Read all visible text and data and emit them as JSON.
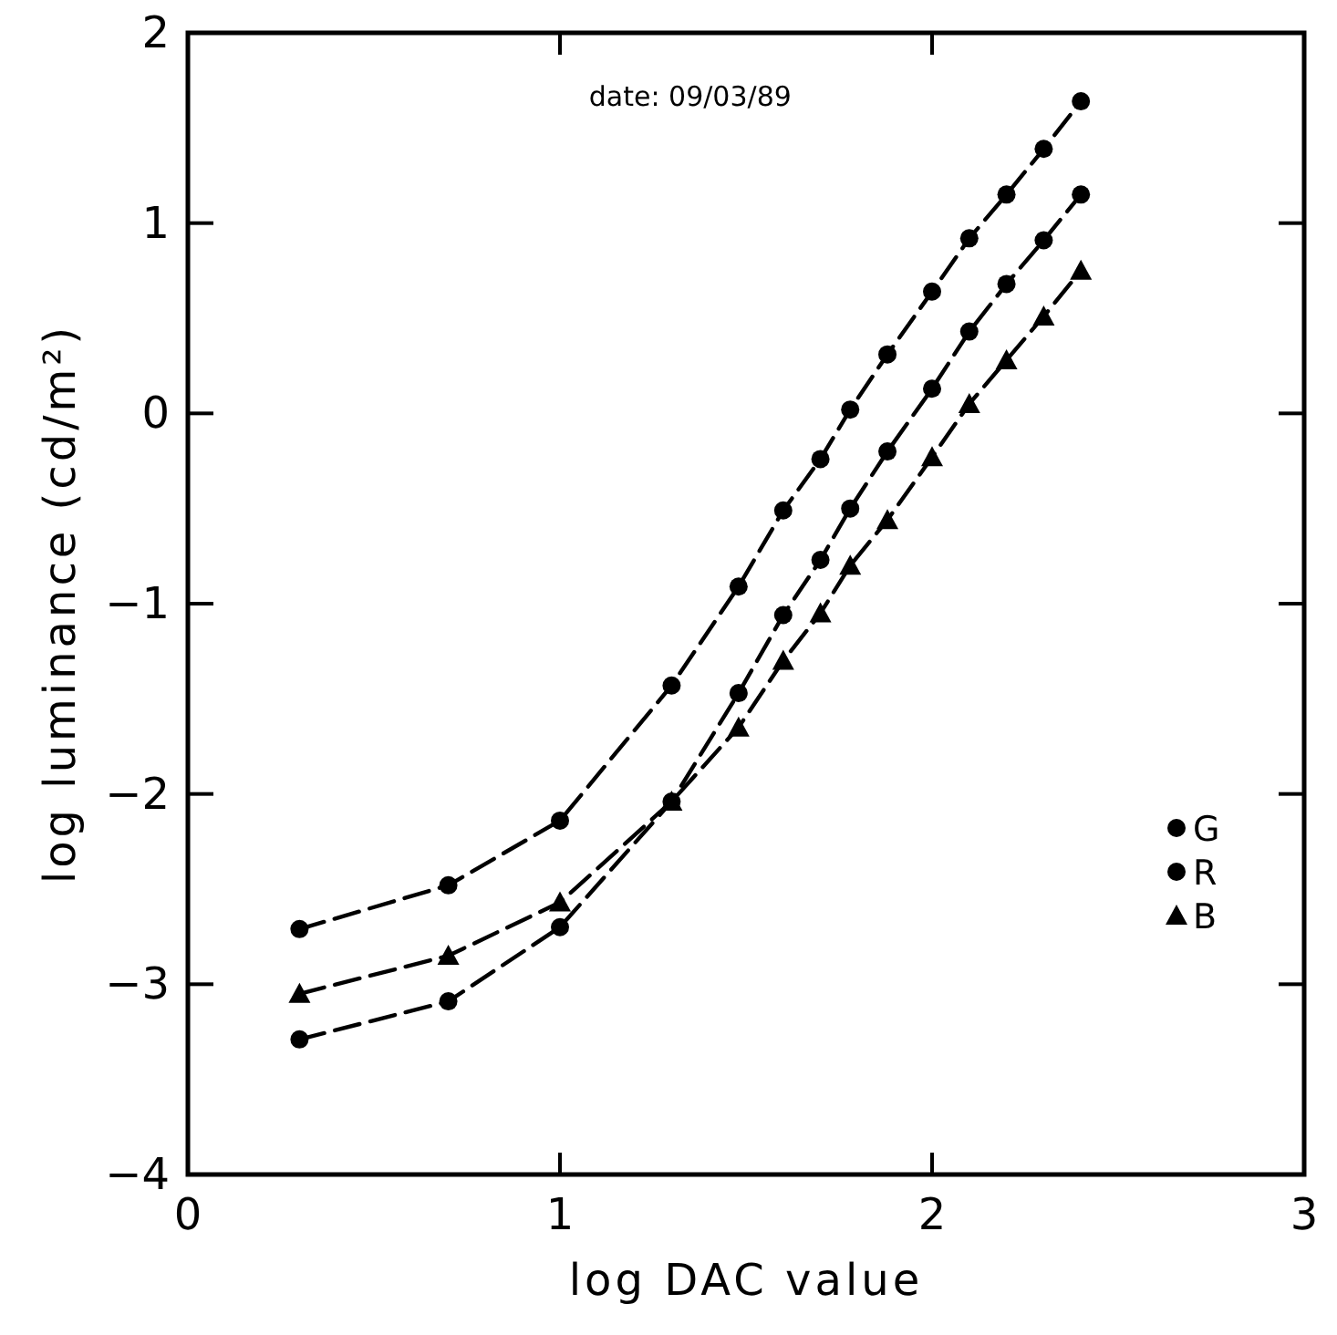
{
  "chart_data": {
    "type": "line",
    "xlabel": "log DAC value",
    "ylabel": "log luminance (cd/m²)",
    "annotations": [
      "date: 09/03/89"
    ],
    "xlim": [
      0,
      3
    ],
    "ylim": [
      -4,
      2
    ],
    "xticks": [
      0,
      1,
      2,
      3
    ],
    "yticks": [
      -4,
      -3,
      -2,
      -1,
      0,
      1,
      2
    ],
    "grid": false,
    "legend": "bottom right",
    "line_style": "dashed",
    "series": [
      {
        "name": "G",
        "color": "#000000",
        "marker": "circle",
        "x": [
          0.3,
          0.7,
          1.0,
          1.3,
          1.48,
          1.6,
          1.7,
          1.78,
          1.88,
          2.0,
          2.1,
          2.2,
          2.3,
          2.4
        ],
        "values": [
          -2.71,
          -2.48,
          -2.14,
          -1.43,
          -0.91,
          -0.51,
          -0.24,
          0.02,
          0.31,
          0.64,
          0.92,
          1.15,
          1.39,
          1.64
        ]
      },
      {
        "name": "R",
        "color": "#000000",
        "marker": "circle",
        "x": [
          0.3,
          0.7,
          1.0,
          1.3,
          1.48,
          1.6,
          1.7,
          1.78,
          1.88,
          2.0,
          2.1,
          2.2,
          2.3,
          2.4
        ],
        "values": [
          -3.29,
          -3.09,
          -2.7,
          -2.04,
          -1.47,
          -1.06,
          -0.77,
          -0.5,
          -0.2,
          0.13,
          0.43,
          0.68,
          0.91,
          1.15
        ]
      },
      {
        "name": "B",
        "color": "#000000",
        "marker": "triangle",
        "x": [
          0.3,
          0.7,
          1.0,
          1.3,
          1.48,
          1.6,
          1.7,
          1.78,
          1.88,
          2.0,
          2.1,
          2.2,
          2.3,
          2.4
        ],
        "values": [
          -3.05,
          -2.85,
          -2.57,
          -2.04,
          -1.65,
          -1.3,
          -1.05,
          -0.8,
          -0.56,
          -0.23,
          0.05,
          0.28,
          0.51,
          0.75
        ]
      }
    ]
  }
}
